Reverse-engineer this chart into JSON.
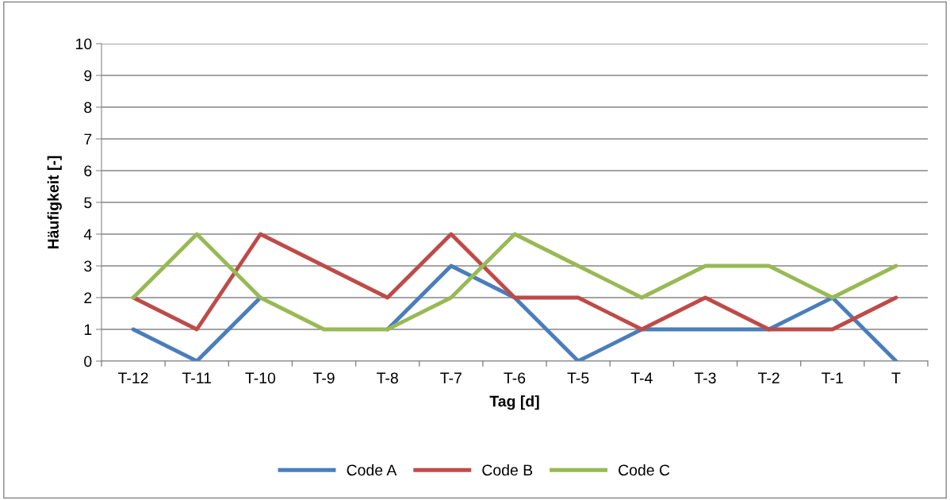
{
  "chart_data": {
    "type": "line",
    "xlabel": "Tag [d]",
    "ylabel": "Häufigkeit [-]",
    "categories": [
      "T-12",
      "T-11",
      "T-10",
      "T-9",
      "T-8",
      "T-7",
      "T-6",
      "T-5",
      "T-4",
      "T-3",
      "T-2",
      "T-1",
      "T"
    ],
    "series": [
      {
        "name": "Code A",
        "color": "#4a7ebb",
        "values": [
          1,
          0,
          2,
          null,
          1,
          3,
          2,
          0,
          1,
          1,
          1,
          2,
          0
        ]
      },
      {
        "name": "Code B",
        "color": "#be4b48",
        "values": [
          2,
          1,
          4,
          3,
          2,
          4,
          2,
          2,
          1,
          2,
          1,
          1,
          2
        ]
      },
      {
        "name": "Code C",
        "color": "#98b954",
        "values": [
          2,
          4,
          2,
          1,
          1,
          2,
          4,
          3,
          2,
          3,
          3,
          2,
          3
        ]
      }
    ],
    "ylim": [
      0,
      10
    ],
    "yticks": [
      0,
      1,
      2,
      3,
      4,
      5,
      6,
      7,
      8,
      9,
      10
    ],
    "grid": "y",
    "legend": "bottom",
    "marker": "none",
    "line_style": "solid"
  }
}
